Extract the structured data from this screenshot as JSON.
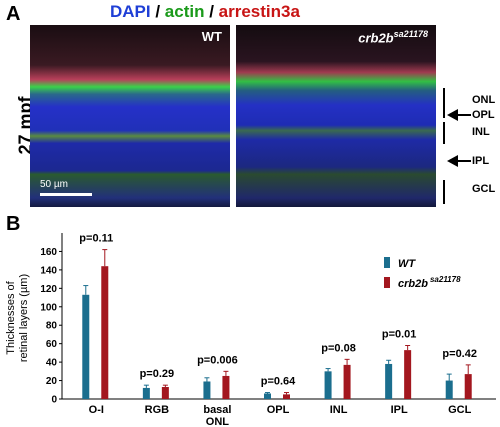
{
  "panel_a": {
    "letter": "A",
    "stain": {
      "dapi": "DAPI",
      "sep1": " / ",
      "actin": "actin",
      "sep2": " / ",
      "arrestin": "arrestin3a"
    },
    "age": "27 mpf",
    "left_image_label": "WT",
    "right_image_label": "crb2b",
    "right_image_sup": "sa21178",
    "scale_bar": "50 µm",
    "layer_labels": {
      "onl": "ONL",
      "opl": "OPL",
      "inl": "INL",
      "ipl": "IPL",
      "gcl": "GCL"
    },
    "colors": {
      "dapi": "#1f3fd6",
      "actin": "#1a9a1a",
      "arrestin": "#c81515"
    }
  },
  "panel_b": {
    "letter": "B",
    "chart_data": {
      "type": "bar",
      "ylabel_line1": "Thicknesses of",
      "ylabel_line2": "retinal layers (µm)",
      "ylim": [
        0,
        180
      ],
      "yticks": [
        "0",
        "20",
        "40",
        "60",
        "80",
        "100",
        "120",
        "140",
        "160"
      ],
      "ytick_values": [
        0,
        20,
        40,
        60,
        80,
        100,
        120,
        140,
        160
      ],
      "categories": [
        "O-I",
        "RGB",
        "basal ONL",
        "OPL",
        "INL",
        "IPL",
        "GCL"
      ],
      "category_lines": [
        [
          "O-I"
        ],
        [
          "RGB"
        ],
        [
          "basal",
          "ONL"
        ],
        [
          "OPL"
        ],
        [
          "INL"
        ],
        [
          "IPL"
        ],
        [
          "GCL"
        ]
      ],
      "pvalues": [
        "p=0.11",
        "p=0.29",
        "p=0.006",
        "p=0.64",
        "p=0.08",
        "p=0.01",
        "p=0.42"
      ],
      "series": [
        {
          "name": "WT",
          "color": "#1b6e8e",
          "values": [
            113,
            12,
            19,
            6,
            30,
            38,
            20
          ],
          "errors": [
            10,
            3,
            4,
            1,
            3,
            4,
            7
          ]
        },
        {
          "name": "crb2b",
          "name_sup": "sa21178",
          "color": "#a3171f",
          "values": [
            144,
            13,
            25,
            5,
            37,
            53,
            27
          ],
          "errors": [
            18,
            2,
            5,
            2,
            6,
            5,
            10
          ]
        }
      ],
      "legend_position": "top-right",
      "grid": false
    }
  }
}
